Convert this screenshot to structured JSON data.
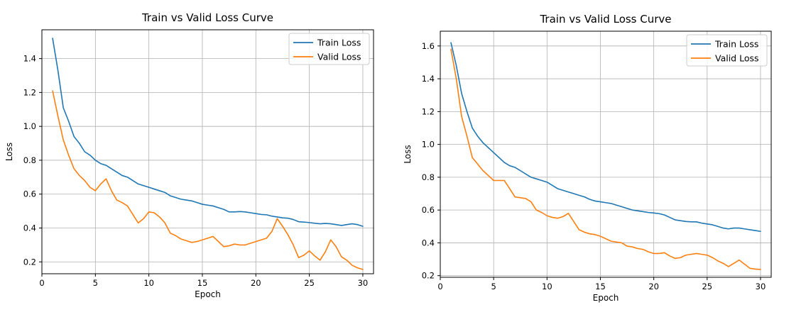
{
  "chart_data": [
    {
      "type": "line",
      "title": "Train vs Valid Loss Curve",
      "xlabel": "Epoch",
      "ylabel": "Loss",
      "xlim": [
        0,
        31
      ],
      "ylim": [
        0.13,
        1.57
      ],
      "xticks": [
        0,
        5,
        10,
        15,
        20,
        25,
        30
      ],
      "yticks": [
        0.2,
        0.4,
        0.6,
        0.8,
        1.0,
        1.2,
        1.4
      ],
      "grid": true,
      "legend_position": "top-right",
      "x": [
        1,
        1.5,
        2,
        2.5,
        3,
        3.5,
        4,
        4.5,
        5,
        5.5,
        6,
        6.5,
        7,
        7.5,
        8,
        8.5,
        9,
        9.5,
        10,
        10.5,
        11,
        11.5,
        12,
        12.5,
        13,
        13.5,
        14,
        14.5,
        15,
        15.5,
        16,
        16.5,
        17,
        17.5,
        18,
        18.5,
        19,
        19.5,
        20,
        20.5,
        21,
        21.5,
        22,
        22.5,
        23,
        23.5,
        24,
        24.5,
        25,
        25.5,
        26,
        26.5,
        27,
        27.5,
        28,
        28.5,
        29,
        29.5,
        30
      ],
      "series": [
        {
          "name": "Train Loss",
          "color": "#1f77b4",
          "values": [
            1.52,
            1.33,
            1.11,
            1.03,
            0.94,
            0.9,
            0.85,
            0.83,
            0.8,
            0.78,
            0.77,
            0.75,
            0.73,
            0.71,
            0.7,
            0.68,
            0.66,
            0.65,
            0.64,
            0.63,
            0.62,
            0.61,
            0.59,
            0.58,
            0.57,
            0.565,
            0.56,
            0.55,
            0.54,
            0.535,
            0.53,
            0.52,
            0.51,
            0.495,
            0.495,
            0.497,
            0.495,
            0.49,
            0.485,
            0.48,
            0.478,
            0.47,
            0.465,
            0.46,
            0.458,
            0.45,
            0.437,
            0.435,
            0.432,
            0.428,
            0.425,
            0.427,
            0.425,
            0.42,
            0.415,
            0.42,
            0.425,
            0.42,
            0.41
          ]
        },
        {
          "name": "Valid Loss",
          "color": "#ff7f0e",
          "values": [
            1.21,
            1.06,
            0.92,
            0.83,
            0.75,
            0.71,
            0.68,
            0.64,
            0.62,
            0.66,
            0.69,
            0.62,
            0.565,
            0.55,
            0.53,
            0.48,
            0.43,
            0.455,
            0.495,
            0.49,
            0.465,
            0.43,
            0.37,
            0.355,
            0.335,
            0.325,
            0.315,
            0.32,
            0.33,
            0.34,
            0.35,
            0.32,
            0.29,
            0.295,
            0.305,
            0.3,
            0.3,
            0.31,
            0.32,
            0.33,
            0.34,
            0.38,
            0.455,
            0.41,
            0.36,
            0.3,
            0.225,
            0.24,
            0.265,
            0.235,
            0.21,
            0.26,
            0.33,
            0.29,
            0.23,
            0.21,
            0.18,
            0.165,
            0.155
          ]
        }
      ]
    },
    {
      "type": "line",
      "title": "Train vs Valid Loss Curve",
      "xlabel": "Epoch",
      "ylabel": "Loss",
      "xlim": [
        0,
        31
      ],
      "ylim": [
        0.19,
        1.69
      ],
      "xticks": [
        0,
        5,
        10,
        15,
        20,
        25,
        30
      ],
      "yticks": [
        0.2,
        0.4,
        0.6,
        0.8,
        1.0,
        1.2,
        1.4,
        1.6
      ],
      "grid": true,
      "legend_position": "top-right",
      "x": [
        1,
        1.5,
        2,
        2.5,
        3,
        3.5,
        4,
        4.5,
        5,
        5.5,
        6,
        6.5,
        7,
        7.5,
        8,
        8.5,
        9,
        9.5,
        10,
        10.5,
        11,
        11.5,
        12,
        12.5,
        13,
        13.5,
        14,
        14.5,
        15,
        15.5,
        16,
        16.5,
        17,
        17.5,
        18,
        18.5,
        19,
        19.5,
        20,
        20.5,
        21,
        21.5,
        22,
        22.5,
        23,
        23.5,
        24,
        24.5,
        25,
        25.5,
        26,
        26.5,
        27,
        27.5,
        28,
        28.5,
        29,
        29.5,
        30
      ],
      "series": [
        {
          "name": "Train Loss",
          "color": "#1f77b4",
          "values": [
            1.62,
            1.48,
            1.31,
            1.2,
            1.1,
            1.05,
            1.01,
            0.98,
            0.95,
            0.92,
            0.89,
            0.87,
            0.86,
            0.84,
            0.82,
            0.8,
            0.79,
            0.78,
            0.77,
            0.75,
            0.73,
            0.72,
            0.71,
            0.7,
            0.69,
            0.68,
            0.665,
            0.655,
            0.65,
            0.645,
            0.64,
            0.63,
            0.62,
            0.61,
            0.6,
            0.595,
            0.59,
            0.585,
            0.582,
            0.578,
            0.57,
            0.555,
            0.54,
            0.535,
            0.53,
            0.528,
            0.528,
            0.52,
            0.515,
            0.51,
            0.5,
            0.49,
            0.485,
            0.49,
            0.49,
            0.485,
            0.48,
            0.475,
            0.47
          ]
        },
        {
          "name": "Valid Loss",
          "color": "#ff7f0e",
          "values": [
            1.58,
            1.4,
            1.17,
            1.05,
            0.92,
            0.88,
            0.84,
            0.81,
            0.78,
            0.78,
            0.78,
            0.73,
            0.68,
            0.675,
            0.67,
            0.65,
            0.6,
            0.585,
            0.565,
            0.555,
            0.55,
            0.56,
            0.58,
            0.53,
            0.48,
            0.465,
            0.455,
            0.45,
            0.44,
            0.425,
            0.41,
            0.405,
            0.4,
            0.38,
            0.375,
            0.365,
            0.36,
            0.345,
            0.335,
            0.335,
            0.34,
            0.32,
            0.305,
            0.31,
            0.325,
            0.33,
            0.335,
            0.33,
            0.325,
            0.31,
            0.29,
            0.275,
            0.255,
            0.275,
            0.295,
            0.27,
            0.245,
            0.24,
            0.238
          ]
        }
      ]
    }
  ]
}
